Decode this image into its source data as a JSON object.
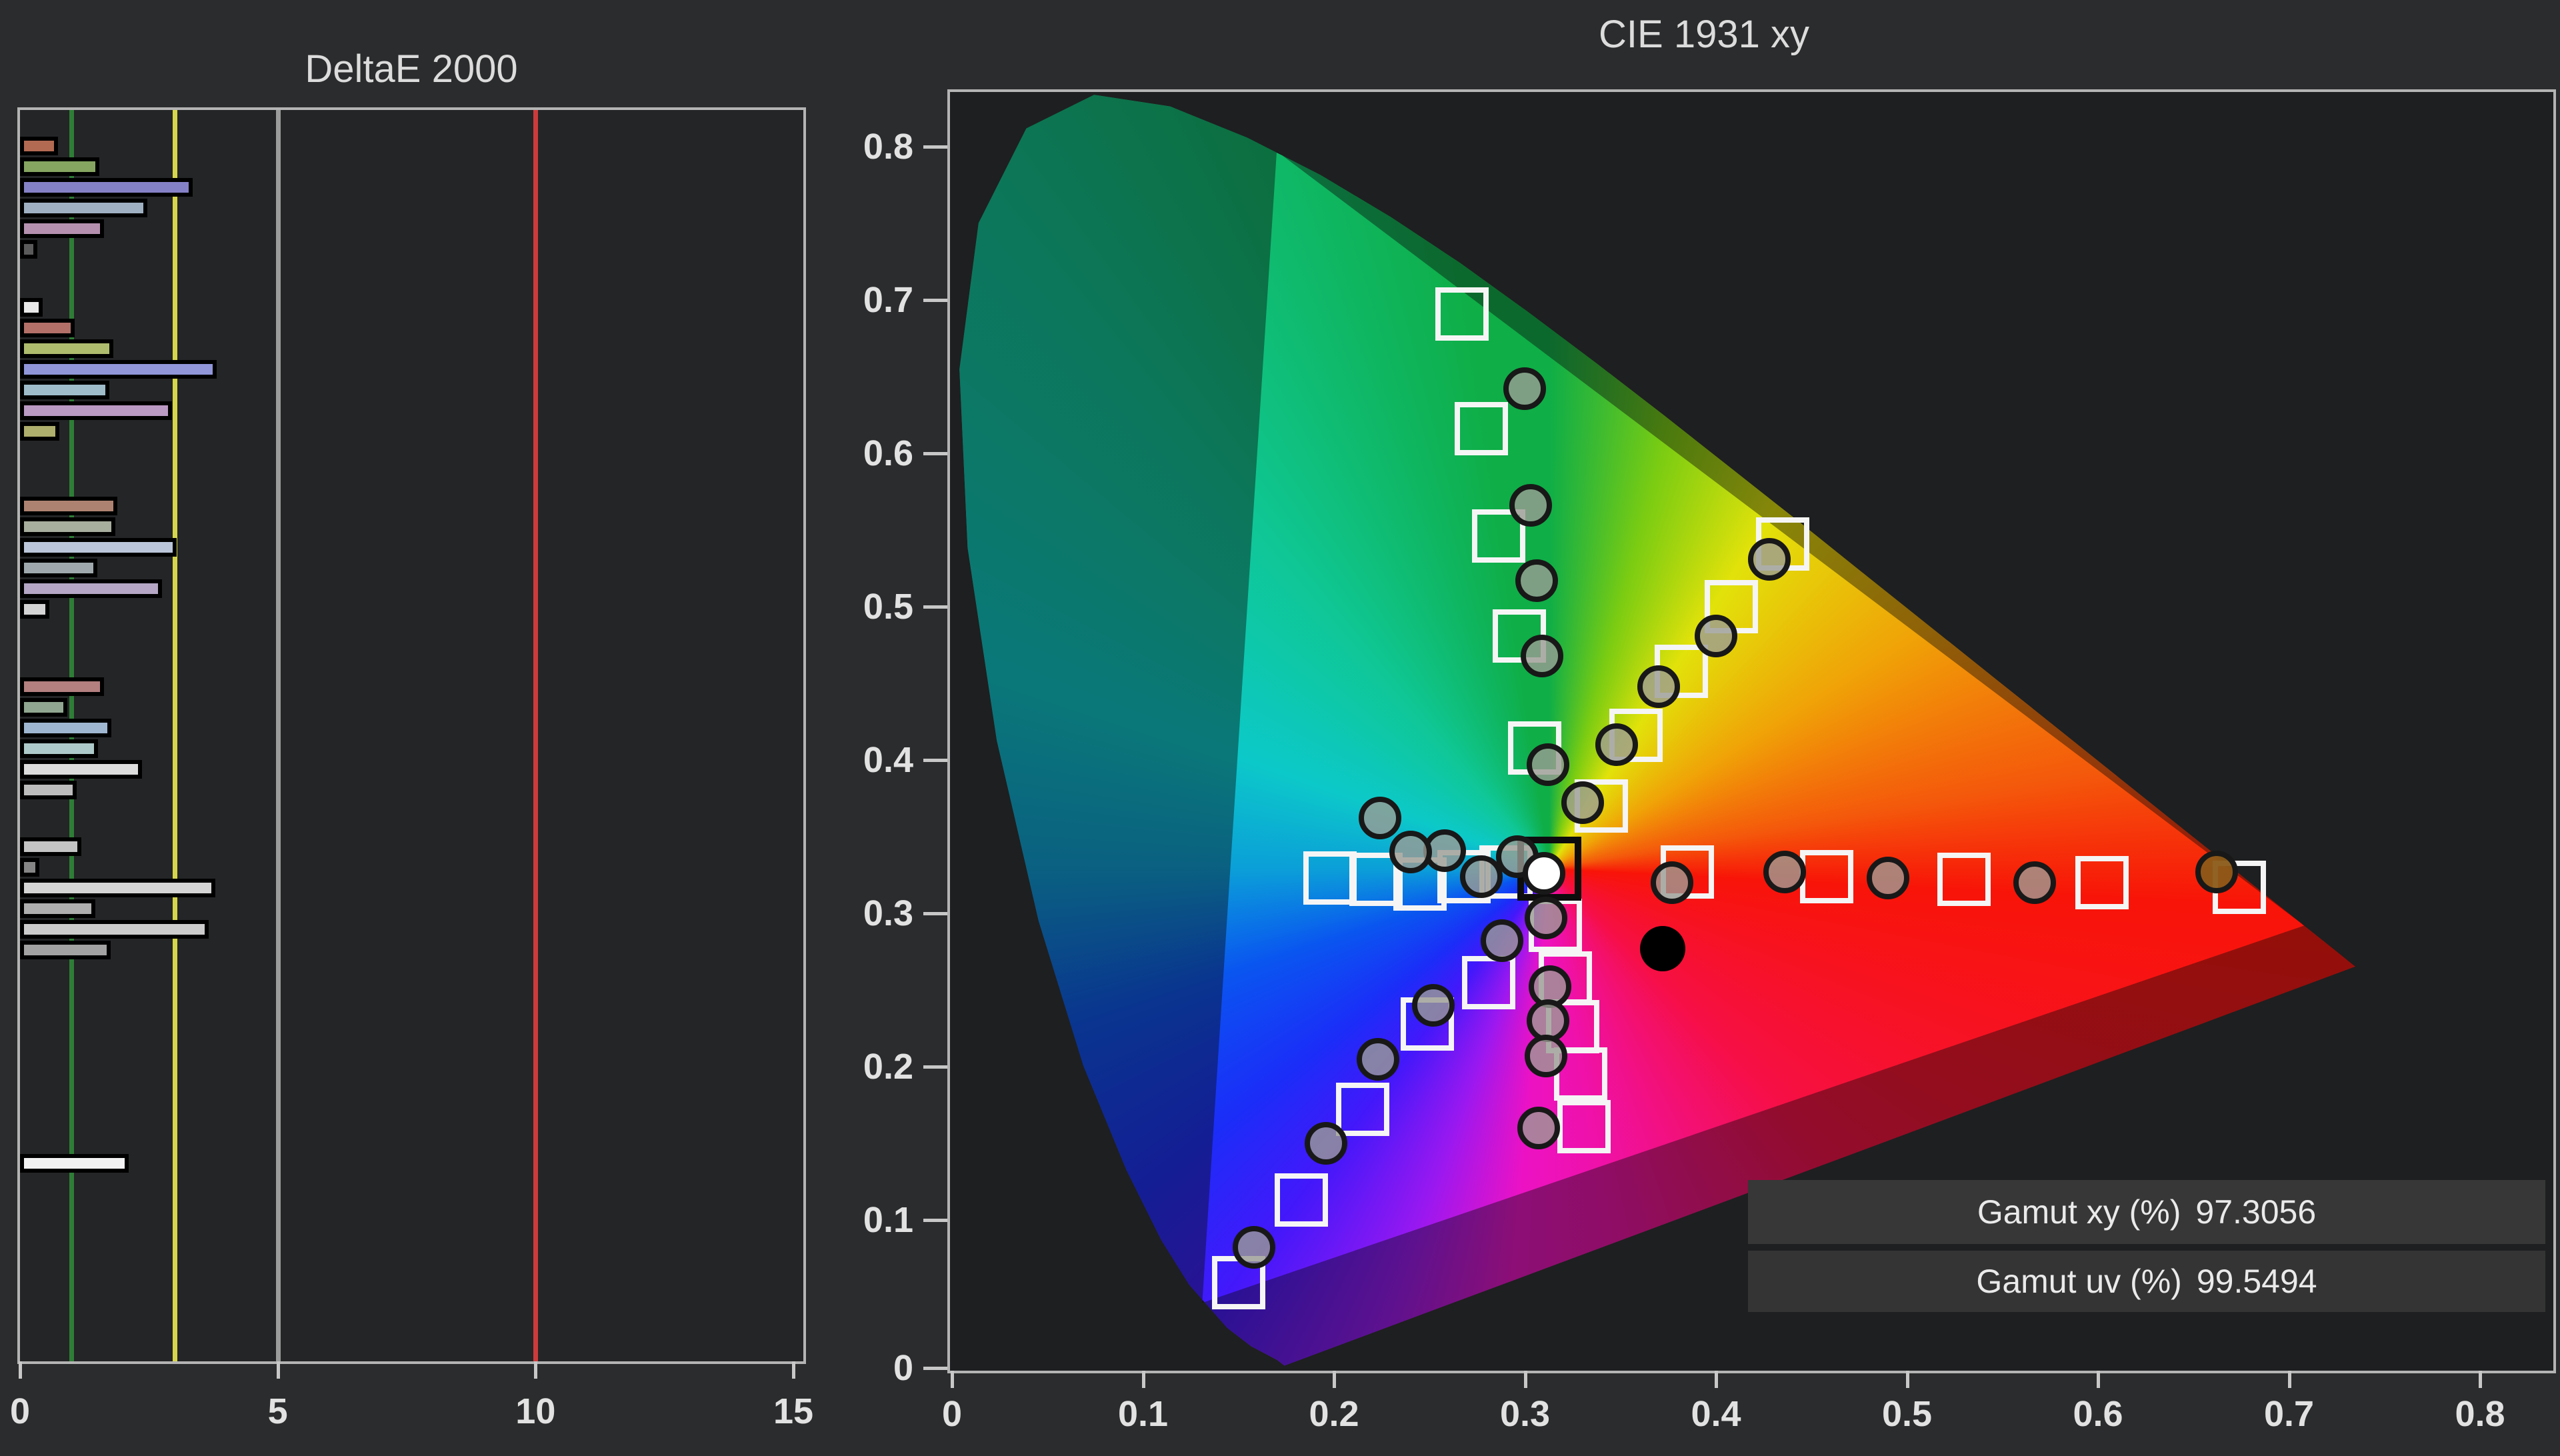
{
  "page": {
    "background": "#2b2c2d",
    "plot_background": "#202122"
  },
  "left_chart": {
    "title": "DeltaE 2000"
  },
  "cie_chart": {
    "title": "CIE 1931 xy",
    "gamut_xy_label": "Gamut xy (%)",
    "gamut_xy_value": "97.3056",
    "gamut_uv_label": "Gamut uv (%)",
    "gamut_uv_value": "99.5494"
  },
  "chart_data": [
    {
      "type": "bar",
      "title": "DeltaE 2000",
      "orientation": "horizontal",
      "xlabel": "",
      "ylabel": "",
      "xlim": [
        0,
        15
      ],
      "x_ticks": [
        0,
        5,
        10,
        15
      ],
      "grid": false,
      "reference_lines": [
        {
          "value": 1,
          "color": "#2e7d36",
          "name": "deltaE-1-green"
        },
        {
          "value": 3,
          "color": "#d6d64a",
          "name": "deltaE-3-yellow"
        },
        {
          "value": 5,
          "color": "#9b9b9b",
          "name": "deltaE-5-gray"
        },
        {
          "value": 10,
          "color": "#cc3b3b",
          "name": "deltaE-10-red"
        }
      ],
      "groups": [
        {
          "name": "sweep-1",
          "start_y": 205,
          "values": [
            0.58,
            1.38,
            3.19,
            2.32,
            1.48,
            0.18
          ],
          "colors": [
            "#b36a52",
            "#85a561",
            "#8581c6",
            "#9fb0c2",
            "#b591af",
            "#5a5a5a"
          ]
        },
        {
          "name": "white-stub",
          "start_y": 447,
          "values": [
            0.28
          ],
          "colors": [
            "#e8e8e8"
          ]
        },
        {
          "name": "sweep-2",
          "start_y": 478,
          "values": [
            0.91,
            1.66,
            3.66,
            1.58,
            2.79,
            0.61
          ],
          "colors": [
            "#b37069",
            "#aebc6d",
            "#9096d8",
            "#9fbccb",
            "#ba9ac3",
            "#aeae6d"
          ]
        },
        {
          "name": "sweep-3",
          "start_y": 745,
          "values": [
            1.73,
            1.69,
            2.88,
            1.34,
            2.6,
            0.41
          ],
          "colors": [
            "#ae8270",
            "#a8ae9e",
            "#bcc6da",
            "#9fa9ad",
            "#b4a6c4",
            "#d4d4d4"
          ]
        },
        {
          "name": "sweep-4",
          "start_y": 1016,
          "values": [
            1.47,
            0.76,
            1.62,
            1.36,
            2.21,
            0.94
          ],
          "colors": [
            "#b37f7f",
            "#90a690",
            "#9fb6d0",
            "#aec9c9",
            "#dcdcdc",
            "#bcbcbc"
          ]
        },
        {
          "name": "grayscale",
          "start_y": 1256,
          "values": [
            1.04,
            0.22,
            3.64,
            1.3,
            3.51,
            1.6
          ],
          "colors": [
            "#c4c4c4",
            "#858585",
            "#d4d4d4",
            "#aeaeae",
            "#cccccc",
            "#a2a2a2"
          ]
        },
        {
          "name": "white-100",
          "start_y": 1731,
          "values": [
            1.95
          ],
          "colors": [
            "#f2f2f2"
          ]
        }
      ]
    },
    {
      "type": "scatter",
      "title": "CIE 1931 xy",
      "xlabel": "x",
      "ylabel": "y",
      "xlim": [
        0,
        0.8377
      ],
      "ylim": [
        0,
        0.8357
      ],
      "x_ticks": [
        0,
        0.1,
        0.2,
        0.3,
        0.4,
        0.5,
        0.6,
        0.7,
        0.8
      ],
      "y_ticks": [
        0,
        0.1,
        0.2,
        0.3,
        0.4,
        0.5,
        0.6,
        0.7,
        0.8
      ],
      "grid": false,
      "annotations": [
        {
          "label": "Gamut xy (%)",
          "value": "97.3056"
        },
        {
          "label": "Gamut uv (%)",
          "value": "99.5494"
        }
      ],
      "gamut_triangle_p3": [
        [
          0.674,
          0.317
        ],
        [
          0.267,
          0.691
        ],
        [
          0.15,
          0.059
        ]
      ],
      "rec2020_triangle": [
        [
          0.708,
          0.292
        ],
        [
          0.17,
          0.797
        ],
        [
          0.131,
          0.046
        ]
      ],
      "white_point": [
        0.3127,
        0.329
      ],
      "series": [
        {
          "name": "targets-red",
          "marker": "square",
          "points": [
            [
              0.385,
              0.327
            ],
            [
              0.458,
              0.324
            ],
            [
              0.53,
              0.322
            ],
            [
              0.602,
              0.32
            ],
            [
              0.674,
              0.317
            ]
          ]
        },
        {
          "name": "targets-green",
          "marker": "square",
          "points": [
            [
              0.305,
              0.408
            ],
            [
              0.297,
              0.481
            ],
            [
              0.286,
              0.546
            ],
            [
              0.277,
              0.616
            ],
            [
              0.267,
              0.691
            ]
          ]
        },
        {
          "name": "targets-blue",
          "marker": "square",
          "points": [
            [
              0.281,
              0.255
            ],
            [
              0.249,
              0.228
            ],
            [
              0.215,
              0.172
            ],
            [
              0.183,
              0.113
            ],
            [
              0.15,
              0.059
            ]
          ]
        },
        {
          "name": "targets-cyan",
          "marker": "square",
          "points": [
            [
              0.29,
              0.327
            ],
            [
              0.268,
              0.324
            ],
            [
              0.245,
              0.319
            ],
            [
              0.222,
              0.322
            ],
            [
              0.198,
              0.323
            ]
          ]
        },
        {
          "name": "targets-magenta",
          "marker": "square",
          "points": [
            [
              0.316,
              0.292
            ],
            [
              0.321,
              0.258
            ],
            [
              0.325,
              0.226
            ],
            [
              0.329,
              0.195
            ],
            [
              0.331,
              0.161
            ]
          ]
        },
        {
          "name": "targets-yellow",
          "marker": "square",
          "points": [
            [
              0.34,
              0.37
            ],
            [
              0.358,
              0.416
            ],
            [
              0.382,
              0.458
            ],
            [
              0.408,
              0.5
            ],
            [
              0.435,
              0.541
            ]
          ]
        },
        {
          "name": "target-white",
          "marker": "square-black",
          "points": [
            [
              0.3127,
              0.329
            ]
          ]
        },
        {
          "name": "measured-red",
          "marker": "circle",
          "points": [
            [
              0.377,
              0.32
            ],
            [
              0.436,
              0.327
            ],
            [
              0.49,
              0.323
            ],
            [
              0.567,
              0.32
            ]
          ]
        },
        {
          "name": "measured-red-100",
          "marker": "circle",
          "color": "rgba(138,90,24,0.95)",
          "points": [
            [
              0.662,
              0.327
            ]
          ]
        },
        {
          "name": "measured-green",
          "marker": "circle",
          "points": [
            [
              0.312,
              0.397
            ],
            [
              0.309,
              0.468
            ],
            [
              0.306,
              0.517
            ],
            [
              0.303,
              0.566
            ],
            [
              0.3,
              0.642
            ]
          ]
        },
        {
          "name": "measured-blue",
          "marker": "circle",
          "points": [
            [
              0.288,
              0.282
            ],
            [
              0.252,
              0.24
            ],
            [
              0.223,
              0.205
            ],
            [
              0.196,
              0.15
            ],
            [
              0.158,
              0.082
            ]
          ]
        },
        {
          "name": "measured-cyan",
          "marker": "circle",
          "points": [
            [
              0.296,
              0.337
            ],
            [
              0.277,
              0.324
            ],
            [
              0.258,
              0.341
            ],
            [
              0.24,
              0.34
            ],
            [
              0.224,
              0.362
            ]
          ]
        },
        {
          "name": "measured-magenta",
          "marker": "circle",
          "points": [
            [
              0.311,
              0.297
            ],
            [
              0.313,
              0.252
            ],
            [
              0.312,
              0.23
            ],
            [
              0.311,
              0.207
            ],
            [
              0.307,
              0.16
            ]
          ]
        },
        {
          "name": "measured-yellow",
          "marker": "circle",
          "points": [
            [
              0.33,
              0.372
            ],
            [
              0.348,
              0.41
            ],
            [
              0.37,
              0.448
            ],
            [
              0.4,
              0.481
            ],
            [
              0.428,
              0.531
            ]
          ]
        },
        {
          "name": "measured-white",
          "marker": "circle",
          "color": "#ffffff",
          "points": [
            [
              0.31,
              0.326
            ]
          ]
        },
        {
          "name": "reference-black-dot",
          "marker": "circle-solid",
          "color": "#000000",
          "points": [
            [
              0.372,
              0.277
            ]
          ]
        }
      ]
    }
  ]
}
